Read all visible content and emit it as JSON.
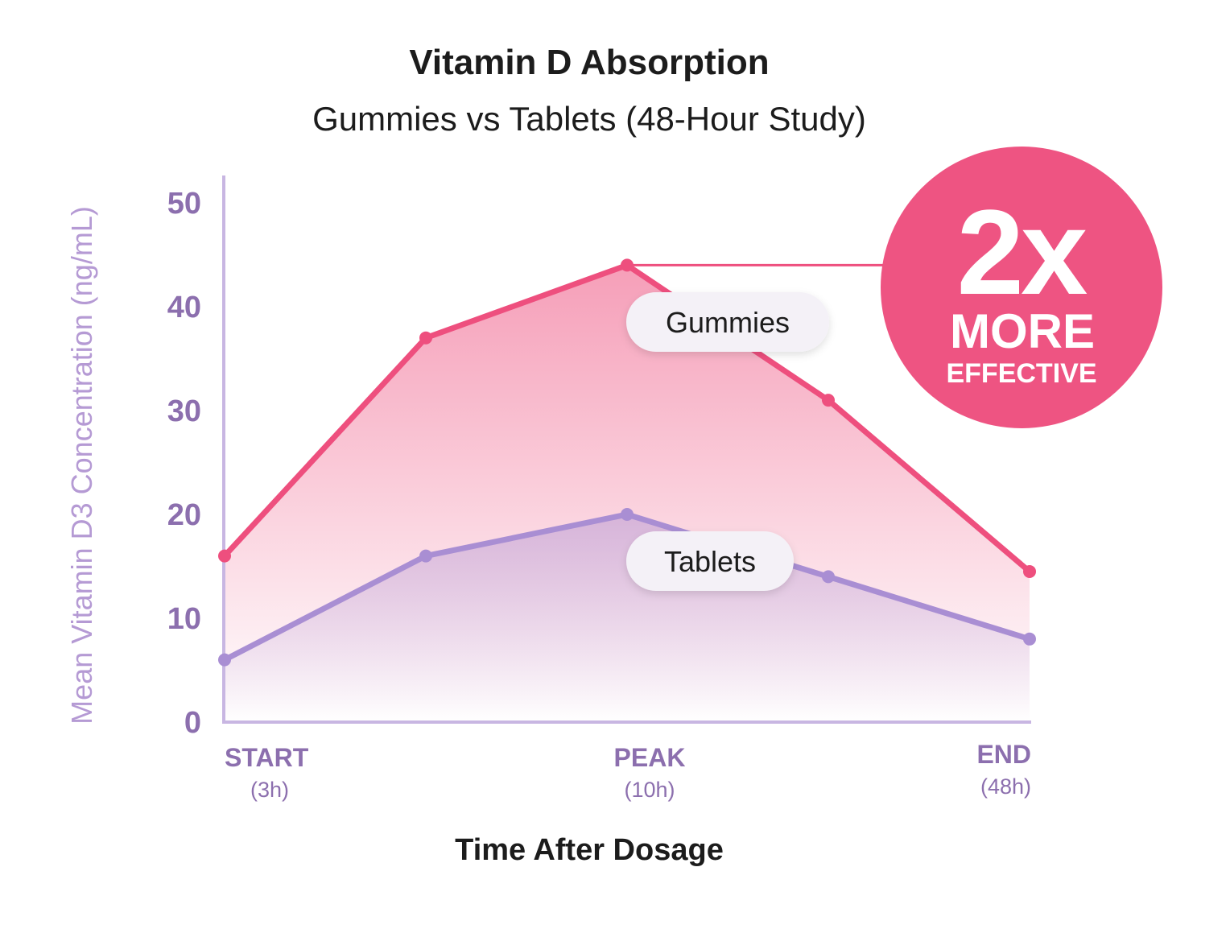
{
  "chart_data": {
    "type": "line",
    "title": "Vitamin D Absorption",
    "subtitle": "Gummies vs Tablets (48-Hour Study)",
    "xlabel": "Time After Dosage",
    "ylabel": "Mean Vitamin D3 Concentration (ng/mL)",
    "ylim": [
      0,
      50
    ],
    "yticks": [
      0,
      10,
      20,
      30,
      40,
      50
    ],
    "x_points": 5,
    "x_labels": [
      {
        "index": 0,
        "label": "START",
        "sub": "(3h)"
      },
      {
        "index": 2,
        "label": "PEAK",
        "sub": "(10h)"
      },
      {
        "index": 4,
        "label": "END",
        "sub": "(48h)"
      }
    ],
    "series": [
      {
        "name": "Gummies",
        "color": "#ee4f7e",
        "values": [
          16,
          37,
          44,
          31,
          14.5
        ]
      },
      {
        "name": "Tablets",
        "color": "#a98ed3",
        "values": [
          6,
          16,
          20,
          14,
          8
        ]
      }
    ],
    "grid": false,
    "badge": {
      "big": "2x",
      "line1": "MORE",
      "line2": "EFFECTIVE",
      "color": "#ee5482"
    }
  }
}
